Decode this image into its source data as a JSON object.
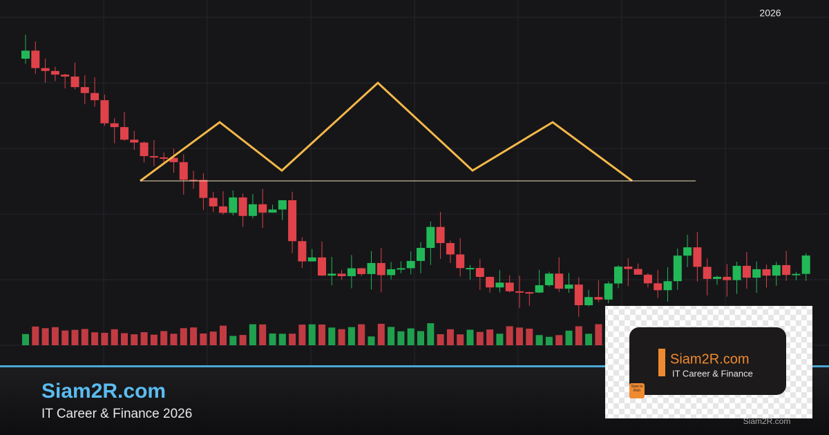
{
  "chart_label": "2026",
  "footer": {
    "title": "Siam2R.com",
    "subtitle": "IT Career & Finance 2026"
  },
  "logo": {
    "title": "Siam2R.com",
    "subtitle": "IT Career & Finance",
    "badge": "Siam to Rich",
    "caption": "Siam2R.com"
  }
}
